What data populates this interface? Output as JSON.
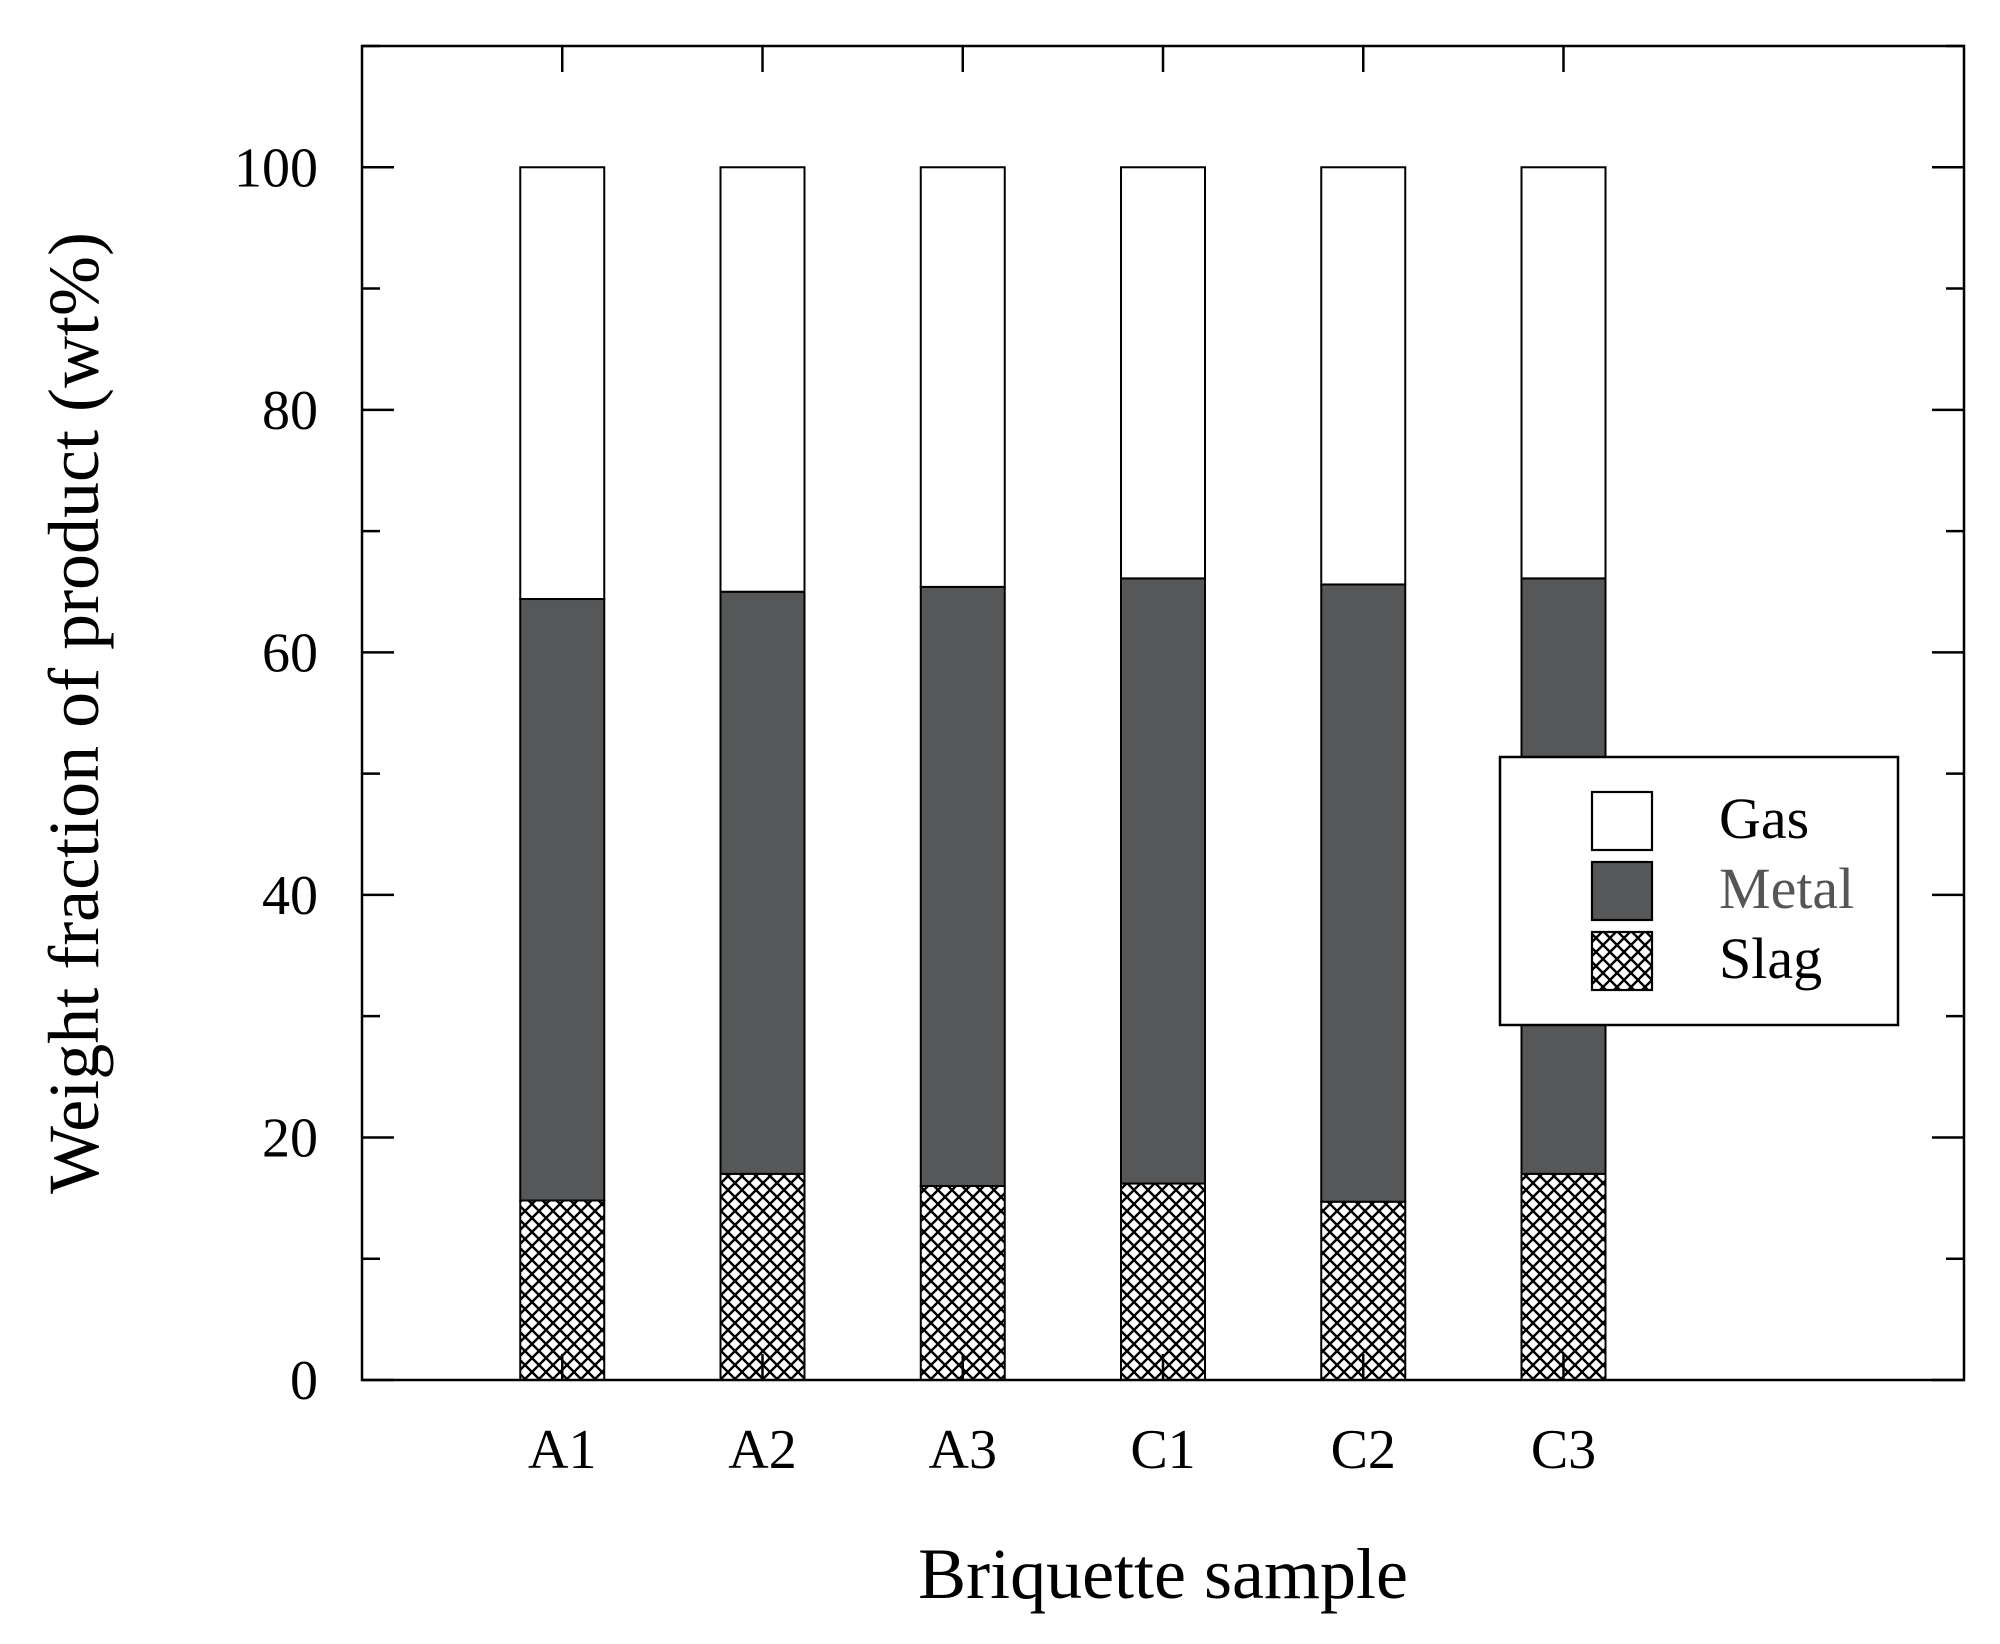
{
  "chart_data": {
    "type": "bar",
    "stacked": true,
    "categories": [
      "A1",
      "A2",
      "A3",
      "C1",
      "C2",
      "C3"
    ],
    "series": [
      {
        "name": "Slag",
        "fill": "crosshatch",
        "values": [
          14.8,
          17.0,
          16.0,
          16.2,
          14.7,
          17.0
        ]
      },
      {
        "name": "Metal",
        "fill": "#555759",
        "values": [
          49.6,
          48.0,
          49.4,
          49.9,
          50.9,
          49.1
        ]
      },
      {
        "name": "Gas",
        "fill": "#ffffff",
        "values": [
          35.6,
          35.0,
          34.6,
          33.9,
          34.4,
          33.9
        ]
      }
    ],
    "xlabel": "Briquette sample",
    "ylabel": "Weight fraction of product (wt%)",
    "ylim": [
      0,
      110
    ],
    "yticks": [
      0,
      20,
      40,
      60,
      80,
      100
    ],
    "ytick_labels": [
      "0",
      "20",
      "40",
      "60",
      "80",
      "100"
    ],
    "grid": false,
    "legend": {
      "position": "right",
      "items": [
        {
          "label": "Gas",
          "fill": "#ffffff",
          "label_color": "#000000"
        },
        {
          "label": "Metal",
          "fill": "#555759",
          "label_color": "#555555"
        },
        {
          "label": "Slag",
          "fill": "crosshatch",
          "label_color": "#000000"
        }
      ]
    },
    "colors": {
      "axis": "#000000",
      "metal": "#555759",
      "gas": "#ffffff"
    }
  }
}
